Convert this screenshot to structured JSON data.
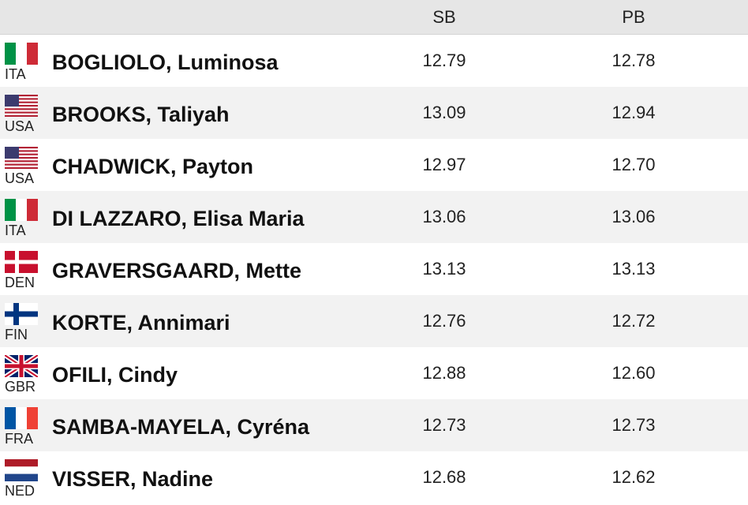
{
  "table": {
    "columns": [
      "SB",
      "PB"
    ],
    "rows": [
      {
        "country": "ITA",
        "name": "BOGLIOLO, Luminosa",
        "sb": "12.79",
        "pb": "12.78"
      },
      {
        "country": "USA",
        "name": "BROOKS, Taliyah",
        "sb": "13.09",
        "pb": "12.94"
      },
      {
        "country": "USA",
        "name": "CHADWICK, Payton",
        "sb": "12.97",
        "pb": "12.70"
      },
      {
        "country": "ITA",
        "name": "DI LAZZARO, Elisa Maria",
        "sb": "13.06",
        "pb": "13.06"
      },
      {
        "country": "DEN",
        "name": "GRAVERSGAARD, Mette",
        "sb": "13.13",
        "pb": "13.13"
      },
      {
        "country": "FIN",
        "name": "KORTE, Annimari",
        "sb": "12.76",
        "pb": "12.72"
      },
      {
        "country": "GBR",
        "name": "OFILI, Cindy",
        "sb": "12.88",
        "pb": "12.60"
      },
      {
        "country": "FRA",
        "name": "SAMBA-MAYELA, Cyréna",
        "sb": "12.73",
        "pb": "12.73"
      },
      {
        "country": "NED",
        "name": "VISSER, Nadine",
        "sb": "12.68",
        "pb": "12.62"
      }
    ]
  }
}
